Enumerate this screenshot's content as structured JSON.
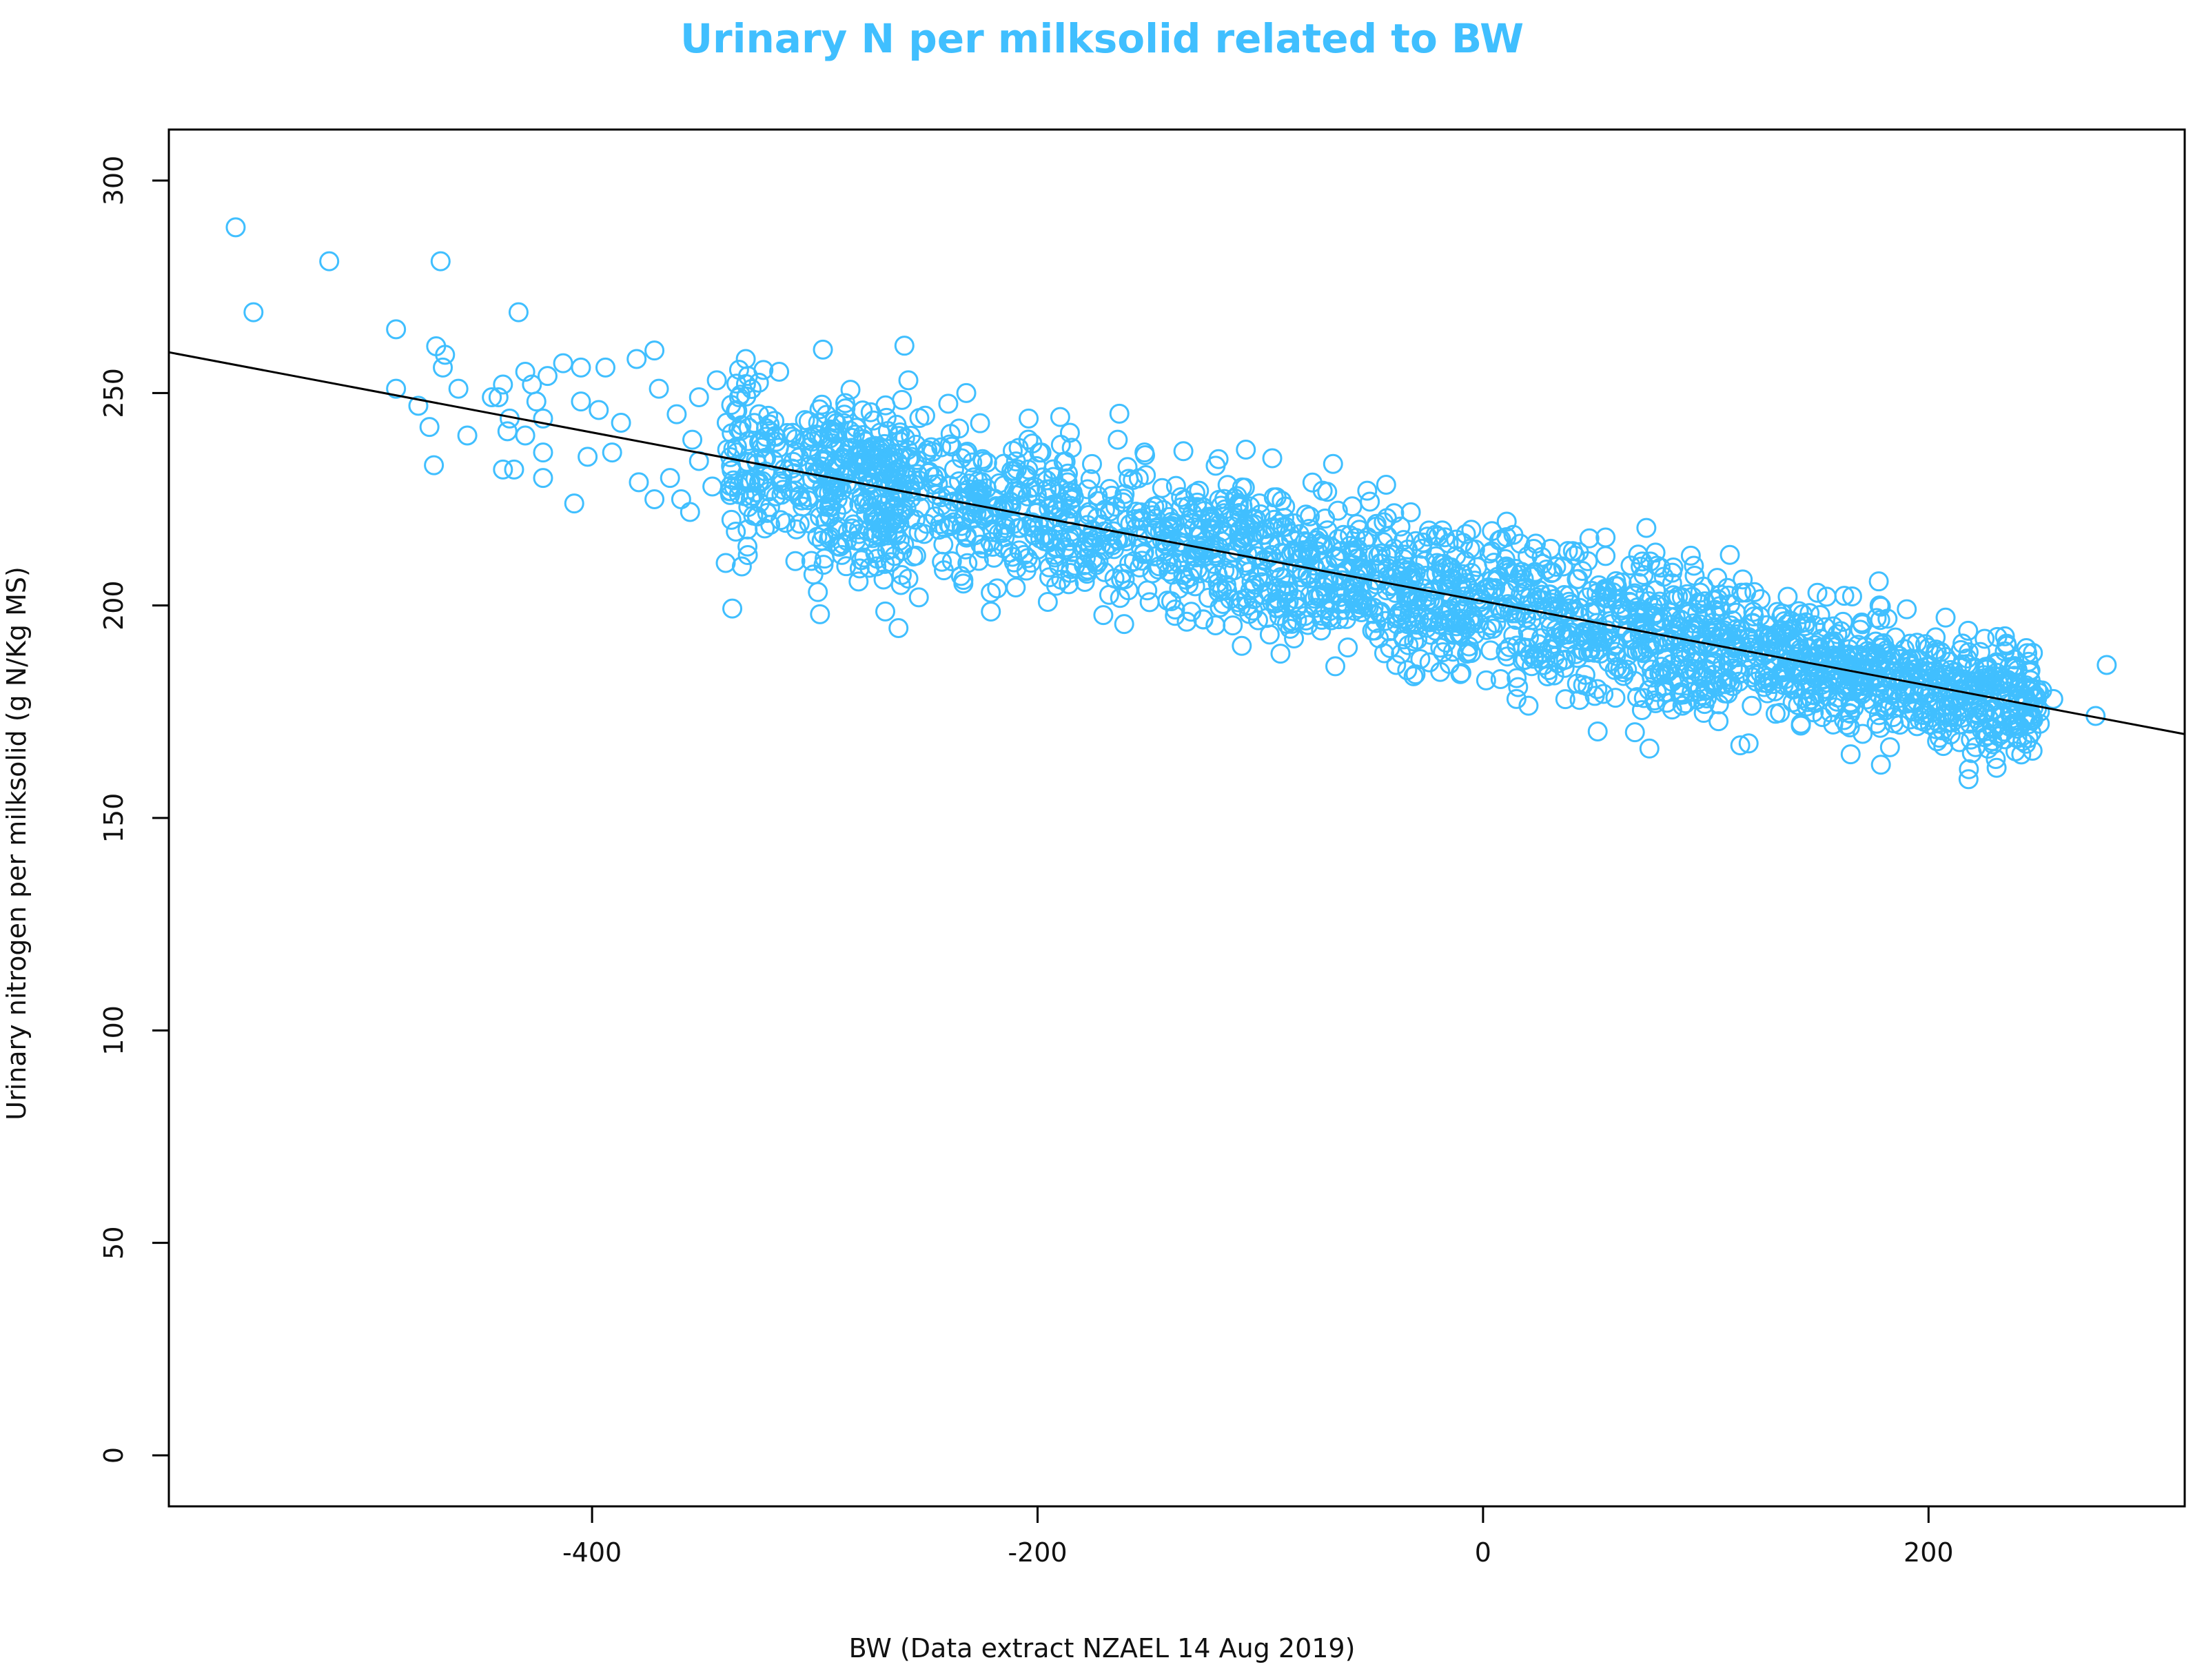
{
  "chart_data": {
    "type": "scatter",
    "title": "Urinary N per milksolid related to BW",
    "xlabel": "BW (Data extract NZAEL 14 Aug 2019)",
    "ylabel": "Urinary nitrogen per milksolid (g N/Kg MS)",
    "xlim": [
      -590,
      315
    ],
    "ylim": [
      -12,
      312
    ],
    "x_ticks": [
      -400,
      -200,
      0,
      200
    ],
    "x_tick_labels": [
      "-400",
      "-200",
      "0",
      "200"
    ],
    "y_ticks": [
      0,
      50,
      100,
      150,
      200,
      250,
      300
    ],
    "y_tick_labels": [
      "0",
      "50",
      "100",
      "150",
      "200",
      "250",
      "300"
    ],
    "grid": false,
    "colors": {
      "points": "#40bfff",
      "title": "#40bfff",
      "line": "#000000",
      "axis": "#000000"
    },
    "regression_line": {
      "slope": -0.0993,
      "intercept": 201.0,
      "x_range": [
        -590,
        315
      ]
    },
    "cloud": {
      "x_range": [
        -340,
        250
      ],
      "spread_y": 9,
      "count": 2400
    },
    "points": [
      {
        "x": -560,
        "y": 289
      },
      {
        "x": -552,
        "y": 269
      },
      {
        "x": -518,
        "y": 281
      },
      {
        "x": -468,
        "y": 281
      },
      {
        "x": -488,
        "y": 265
      },
      {
        "x": -470,
        "y": 261
      },
      {
        "x": -467,
        "y": 256
      },
      {
        "x": -466,
        "y": 259
      },
      {
        "x": -488,
        "y": 251
      },
      {
        "x": -478,
        "y": 247
      },
      {
        "x": -473,
        "y": 242
      },
      {
        "x": -460,
        "y": 251
      },
      {
        "x": -456,
        "y": 240
      },
      {
        "x": -471,
        "y": 233
      },
      {
        "x": -445,
        "y": 249
      },
      {
        "x": -440,
        "y": 252
      },
      {
        "x": -442,
        "y": 249
      },
      {
        "x": -437,
        "y": 244
      },
      {
        "x": -433,
        "y": 269
      },
      {
        "x": -430,
        "y": 255
      },
      {
        "x": -427,
        "y": 252
      },
      {
        "x": -425,
        "y": 248
      },
      {
        "x": -438,
        "y": 241
      },
      {
        "x": -420,
        "y": 254
      },
      {
        "x": -422,
        "y": 244
      },
      {
        "x": -422,
        "y": 236
      },
      {
        "x": -430,
        "y": 240
      },
      {
        "x": -440,
        "y": 232
      },
      {
        "x": -435,
        "y": 232
      },
      {
        "x": -422,
        "y": 230
      },
      {
        "x": -413,
        "y": 257
      },
      {
        "x": -405,
        "y": 256
      },
      {
        "x": -394,
        "y": 256
      },
      {
        "x": -380,
        "y": 258
      },
      {
        "x": -372,
        "y": 260
      },
      {
        "x": -405,
        "y": 248
      },
      {
        "x": -397,
        "y": 246
      },
      {
        "x": -387,
        "y": 243
      },
      {
        "x": -402,
        "y": 235
      },
      {
        "x": -391,
        "y": 236
      },
      {
        "x": -408,
        "y": 224
      },
      {
        "x": -379,
        "y": 229
      },
      {
        "x": -372,
        "y": 225
      },
      {
        "x": -360,
        "y": 225
      },
      {
        "x": -365,
        "y": 230
      },
      {
        "x": -356,
        "y": 222
      },
      {
        "x": -352,
        "y": 234
      },
      {
        "x": -344,
        "y": 253
      },
      {
        "x": -334,
        "y": 249
      },
      {
        "x": -330,
        "y": 254
      },
      {
        "x": -352,
        "y": 249
      },
      {
        "x": -362,
        "y": 245
      },
      {
        "x": -370,
        "y": 251
      },
      {
        "x": -355,
        "y": 239
      },
      {
        "x": -338,
        "y": 226
      },
      {
        "x": -346,
        "y": 228
      },
      {
        "x": -340,
        "y": 210
      },
      {
        "x": -331,
        "y": 258
      },
      {
        "x": -316,
        "y": 255
      },
      {
        "x": -325,
        "y": 245
      },
      {
        "x": -335,
        "y": 236
      },
      {
        "x": -326,
        "y": 221
      },
      {
        "x": -290,
        "y": 214
      },
      {
        "x": -272,
        "y": 211
      },
      {
        "x": -258,
        "y": 253
      },
      {
        "x": -232,
        "y": 250
      },
      {
        "x": -204,
        "y": 244
      },
      {
        "x": -221,
        "y": 203
      },
      {
        "x": -186,
        "y": 205
      },
      {
        "x": -152,
        "y": 236
      },
      {
        "x": -164,
        "y": 239
      },
      {
        "x": -140,
        "y": 201
      },
      {
        "x": -105,
        "y": 198
      },
      {
        "x": -72,
        "y": 227
      },
      {
        "x": -52,
        "y": 227
      },
      {
        "x": -39,
        "y": 186
      },
      {
        "x": -18,
        "y": 189
      },
      {
        "x": 15,
        "y": 178
      },
      {
        "x": 55,
        "y": 216
      },
      {
        "x": 95,
        "y": 207
      },
      {
        "x": 116,
        "y": 203
      },
      {
        "x": 170,
        "y": 196
      },
      {
        "x": 178,
        "y": 200
      },
      {
        "x": 158,
        "y": 176
      },
      {
        "x": 196,
        "y": 173
      },
      {
        "x": 218,
        "y": 189
      },
      {
        "x": 235,
        "y": 191
      },
      {
        "x": 223,
        "y": 176
      },
      {
        "x": 233,
        "y": 172
      },
      {
        "x": 251,
        "y": 180
      },
      {
        "x": 256,
        "y": 178
      },
      {
        "x": 250,
        "y": 175
      },
      {
        "x": 275,
        "y": 174
      },
      {
        "x": 280,
        "y": 186
      }
    ]
  }
}
